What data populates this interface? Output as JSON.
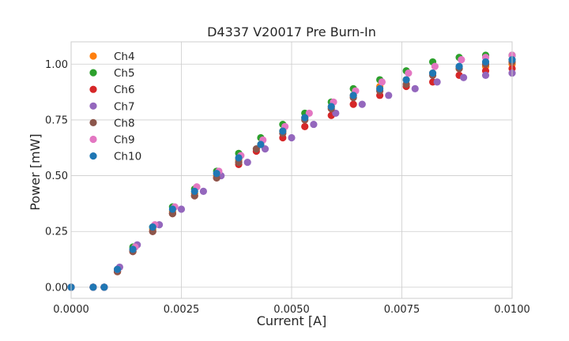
{
  "chart_data": {
    "type": "scatter",
    "title": "D4337 V20017 Pre Burn-In",
    "xlabel": "Current [A]",
    "ylabel": "Power [mW]",
    "xlim": [
      0.0,
      0.01
    ],
    "ylim": [
      -0.05,
      1.1
    ],
    "xticks": [
      0.0,
      0.0025,
      0.005,
      0.0075,
      0.01
    ],
    "xtick_labels": [
      "0.0000",
      "0.0025",
      "0.0050",
      "0.0075",
      "0.0100"
    ],
    "yticks": [
      0.0,
      0.25,
      0.5,
      0.75,
      1.0
    ],
    "ytick_labels": [
      "0.00",
      "0.25",
      "0.50",
      "0.75",
      "1.00"
    ],
    "grid": true,
    "legend_position": "upper-left",
    "series": [
      {
        "name": "Ch4",
        "color": "#ff7f0e",
        "x": [
          0.0,
          0.0005,
          0.00075,
          0.00105,
          0.0014,
          0.00185,
          0.0023,
          0.0028,
          0.0033,
          0.0038,
          0.0043,
          0.0048,
          0.0053,
          0.0059,
          0.0064,
          0.007,
          0.0076,
          0.0082,
          0.0088,
          0.0094,
          0.01
        ],
        "y": [
          0.0,
          0.0,
          0.0,
          0.07,
          0.17,
          0.26,
          0.34,
          0.42,
          0.5,
          0.57,
          0.64,
          0.7,
          0.76,
          0.81,
          0.86,
          0.9,
          0.93,
          0.96,
          0.98,
          0.99,
          1.0
        ]
      },
      {
        "name": "Ch5",
        "color": "#2ca02c",
        "x": [
          0.0,
          0.0005,
          0.00075,
          0.00105,
          0.0014,
          0.00185,
          0.0023,
          0.0028,
          0.0033,
          0.0038,
          0.0043,
          0.0048,
          0.0053,
          0.0059,
          0.0064,
          0.007,
          0.0076,
          0.0082,
          0.0088,
          0.0094,
          0.01
        ],
        "y": [
          0.0,
          0.0,
          0.0,
          0.08,
          0.18,
          0.27,
          0.36,
          0.44,
          0.52,
          0.6,
          0.67,
          0.73,
          0.78,
          0.83,
          0.89,
          0.93,
          0.97,
          1.01,
          1.03,
          1.04,
          1.04
        ]
      },
      {
        "name": "Ch6",
        "color": "#d62728",
        "x": [
          0.0,
          0.0005,
          0.00075,
          0.00105,
          0.0014,
          0.00185,
          0.0023,
          0.0028,
          0.0033,
          0.0038,
          0.0042,
          0.0048,
          0.0053,
          0.0059,
          0.0064,
          0.007,
          0.0076,
          0.0082,
          0.0088,
          0.0094,
          0.01
        ],
        "y": [
          0.0,
          0.0,
          0.0,
          0.07,
          0.16,
          0.25,
          0.33,
          0.41,
          0.49,
          0.55,
          0.61,
          0.67,
          0.72,
          0.77,
          0.82,
          0.86,
          0.9,
          0.92,
          0.95,
          0.97,
          0.98
        ]
      },
      {
        "name": "Ch7",
        "color": "#9467bd",
        "x": [
          0.0,
          0.0005,
          0.00075,
          0.0011,
          0.0015,
          0.002,
          0.0025,
          0.003,
          0.0034,
          0.004,
          0.0044,
          0.005,
          0.0055,
          0.006,
          0.0066,
          0.0072,
          0.0078,
          0.0083,
          0.0089,
          0.0094,
          0.01
        ],
        "y": [
          0.0,
          0.0,
          0.0,
          0.09,
          0.19,
          0.28,
          0.35,
          0.43,
          0.5,
          0.56,
          0.62,
          0.67,
          0.73,
          0.78,
          0.82,
          0.86,
          0.89,
          0.92,
          0.94,
          0.95,
          0.96
        ]
      },
      {
        "name": "Ch8",
        "color": "#8c564b",
        "x": [
          0.0,
          0.0005,
          0.00075,
          0.00105,
          0.0014,
          0.00185,
          0.0023,
          0.0028,
          0.0033,
          0.0038,
          0.0042,
          0.0048,
          0.0053,
          0.0059,
          0.0064,
          0.007,
          0.0076,
          0.0082,
          0.0088,
          0.0094,
          0.01
        ],
        "y": [
          0.0,
          0.0,
          0.0,
          0.07,
          0.16,
          0.25,
          0.33,
          0.41,
          0.49,
          0.56,
          0.62,
          0.69,
          0.75,
          0.8,
          0.85,
          0.88,
          0.91,
          0.95,
          0.98,
          1.0,
          1.01
        ]
      },
      {
        "name": "Ch9",
        "color": "#e377c2",
        "x": [
          0.0,
          0.0005,
          0.00075,
          0.00105,
          0.00145,
          0.0019,
          0.00235,
          0.00285,
          0.00335,
          0.00385,
          0.00435,
          0.00485,
          0.0054,
          0.00595,
          0.00645,
          0.00705,
          0.00765,
          0.00825,
          0.00885,
          0.0094,
          0.01
        ],
        "y": [
          0.0,
          0.0,
          0.0,
          0.08,
          0.18,
          0.28,
          0.36,
          0.45,
          0.52,
          0.59,
          0.66,
          0.72,
          0.78,
          0.83,
          0.88,
          0.92,
          0.96,
          0.99,
          1.02,
          1.03,
          1.04
        ]
      },
      {
        "name": "Ch10",
        "color": "#1f77b4",
        "x": [
          0.0,
          0.0005,
          0.00075,
          0.00105,
          0.0014,
          0.00185,
          0.0023,
          0.0028,
          0.0033,
          0.0038,
          0.0043,
          0.0048,
          0.0053,
          0.0059,
          0.0064,
          0.007,
          0.0076,
          0.0082,
          0.0088,
          0.0094,
          0.01
        ],
        "y": [
          0.0,
          0.0,
          0.0,
          0.08,
          0.17,
          0.27,
          0.35,
          0.43,
          0.51,
          0.58,
          0.64,
          0.7,
          0.76,
          0.81,
          0.86,
          0.89,
          0.93,
          0.96,
          0.99,
          1.01,
          1.02
        ]
      }
    ]
  }
}
